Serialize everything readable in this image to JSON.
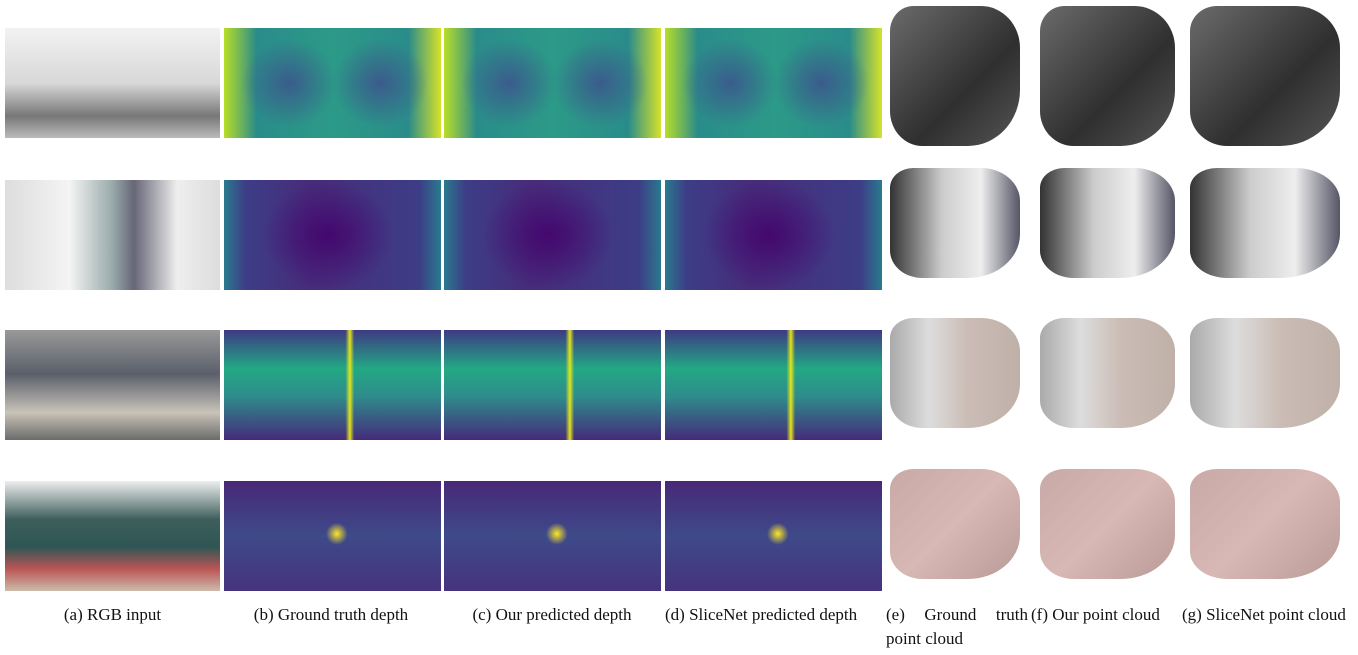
{
  "captions": [
    "(a) RGB input",
    "(b) Ground truth depth",
    "(c) Our predicted depth",
    "(d) SliceNet predicted depth",
    "(e) Ground truth point cloud",
    "(f) Our point cloud",
    "(g) SliceNet point cloud"
  ]
}
